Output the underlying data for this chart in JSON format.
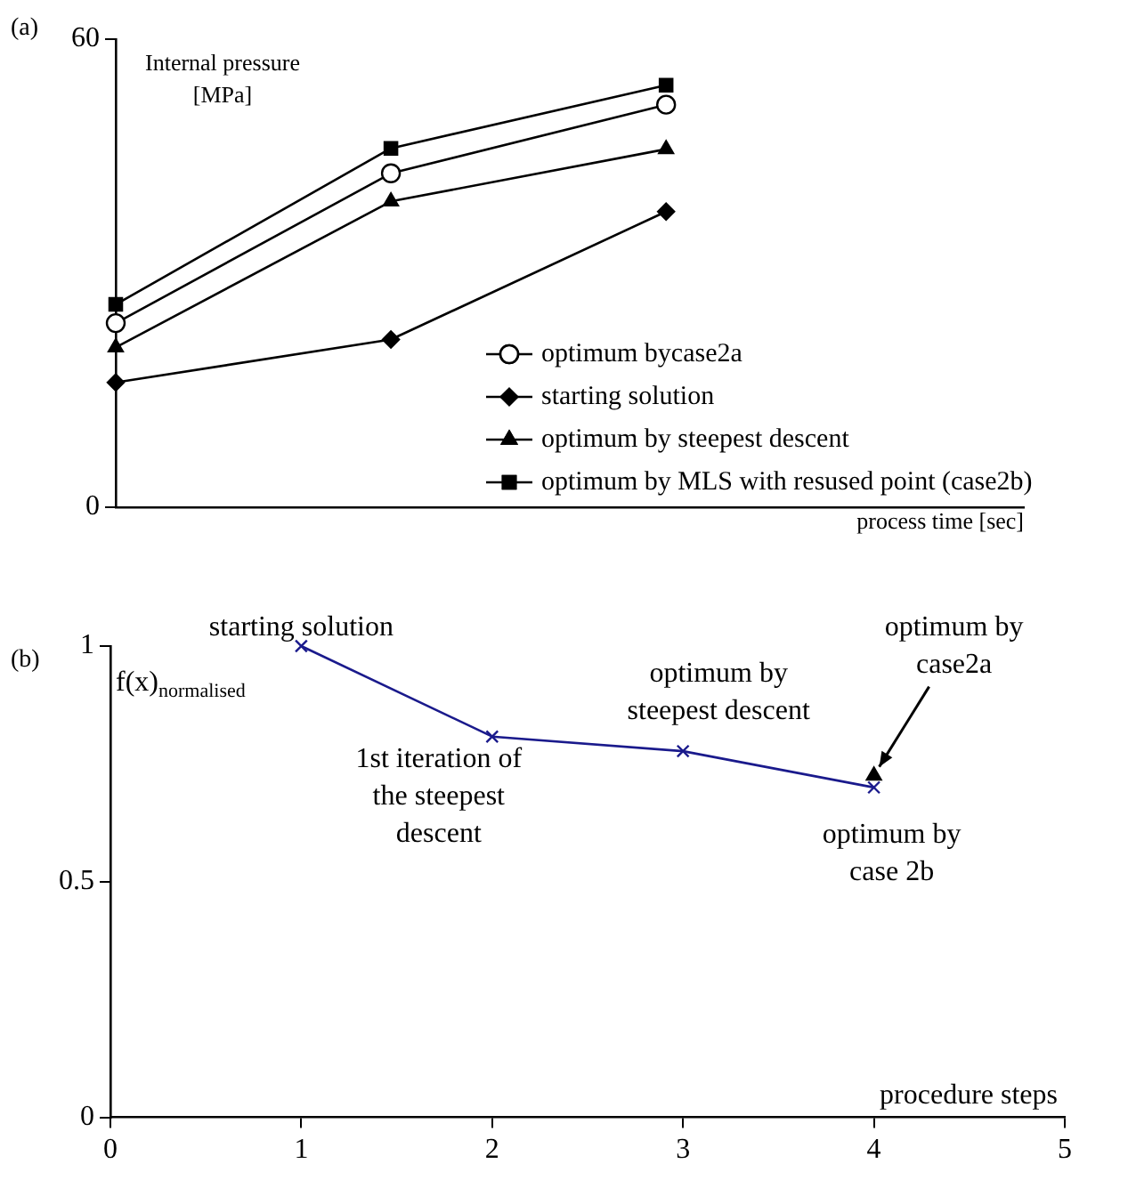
{
  "chart_data": [
    {
      "type": "line",
      "title": "(a)",
      "ylabel": "Internal pressure\n[MPa]",
      "xlabel": "process time [sec]",
      "categories": [
        null,
        null,
        null
      ],
      "ylim": [
        0,
        60
      ],
      "yticks": [
        0,
        60
      ],
      "tick_labels": "y",
      "grid": false,
      "legend": "bottom right",
      "series": [
        {
          "name": "optimum bycase2a",
          "color": "#000000",
          "marker": "circle",
          "values": [
            23.6,
            42.8,
            51.6
          ]
        },
        {
          "name": "starting solution",
          "color": "#000000",
          "marker": "diamond",
          "values": [
            16.0,
            21.5,
            37.9
          ]
        },
        {
          "name": "optimum by steepest descent",
          "color": "#000000",
          "marker": "triangle",
          "values": [
            20.5,
            39.2,
            45.9
          ]
        },
        {
          "name": "optimum by MLS with resused point (case2b)",
          "color": "#000000",
          "marker": "square",
          "values": [
            26.0,
            46.0,
            54.1
          ]
        }
      ]
    },
    {
      "type": "line",
      "title": "(b)",
      "ylabel": "f(x)$_{normalised}$",
      "xlabel": "procedure steps",
      "xlim": [
        0,
        5
      ],
      "xticks": [
        0,
        1,
        2,
        3,
        4,
        5
      ],
      "ylim": [
        0,
        1
      ],
      "yticks": [
        0,
        0.5,
        1
      ],
      "grid": false,
      "legend": false,
      "series": [
        {
          "color": "#1a1a8c",
          "marker": "cross",
          "x": [
            1,
            2,
            3,
            4
          ],
          "values": [
            1.0,
            0.808,
            0.777,
            0.7
          ]
        },
        {
          "type": "scatter",
          "color": "#000000",
          "marker": "triangle",
          "x": [
            4
          ],
          "values": [
            0.725
          ]
        }
      ],
      "annotations": [
        {
          "text": "starting solution",
          "x": 1,
          "y": 1.0
        },
        {
          "text": "1st iteration of\nthe steepest\ndescent",
          "x": 2,
          "y": 0.808
        },
        {
          "text": "optimum by\nsteepest descent",
          "x": 3,
          "y": 0.777
        },
        {
          "text": "optimum by\ncase 2b",
          "x": 4,
          "y": 0.7
        },
        {
          "text": "optimum by\ncase2a",
          "x": 4,
          "y": 0.725
        }
      ]
    }
  ]
}
